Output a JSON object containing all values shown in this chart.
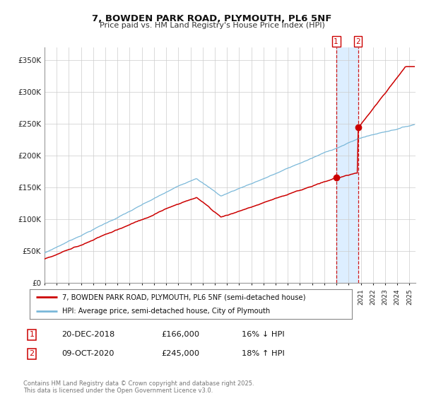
{
  "title": "7, BOWDEN PARK ROAD, PLYMOUTH, PL6 5NF",
  "subtitle": "Price paid vs. HM Land Registry's House Price Index (HPI)",
  "ylim": [
    0,
    370000
  ],
  "yticks": [
    0,
    50000,
    100000,
    150000,
    200000,
    250000,
    300000,
    350000
  ],
  "ytick_labels": [
    "£0",
    "£50K",
    "£100K",
    "£150K",
    "£200K",
    "£250K",
    "£300K",
    "£350K"
  ],
  "xlim_start": 1995,
  "xlim_end": 2025.5,
  "transaction1_date": 2018.97,
  "transaction1_price": 166000,
  "transaction1_label": "20-DEC-2018",
  "transaction1_hpi_pct": "16% ↓ HPI",
  "transaction2_date": 2020.77,
  "transaction2_price": 245000,
  "transaction2_label": "09-OCT-2020",
  "transaction2_hpi_pct": "18% ↑ HPI",
  "hpi_line_color": "#7ab8d9",
  "price_line_color": "#cc0000",
  "marker_color": "#cc0000",
  "dashed_line_color": "#cc0000",
  "shaded_region_color": "#ddeeff",
  "legend1_label": "7, BOWDEN PARK ROAD, PLYMOUTH, PL6 5NF (semi-detached house)",
  "legend2_label": "HPI: Average price, semi-detached house, City of Plymouth",
  "footnote": "Contains HM Land Registry data © Crown copyright and database right 2025.\nThis data is licensed under the Open Government Licence v3.0.",
  "box_color": "#cc0000",
  "background_color": "#ffffff",
  "grid_color": "#cccccc"
}
